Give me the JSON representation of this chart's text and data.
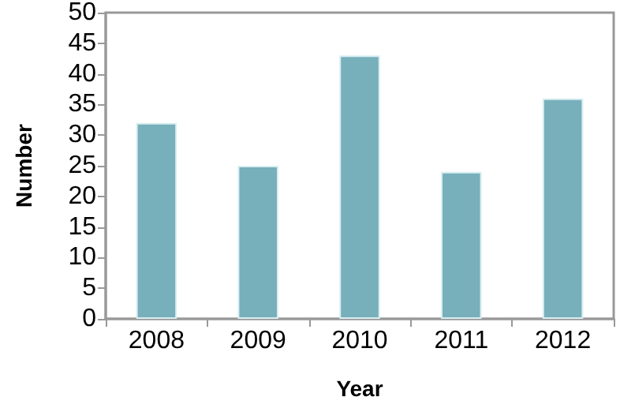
{
  "chart_data": {
    "type": "bar",
    "xlabel": "Year",
    "ylabel": "Number",
    "categories": [
      "2008",
      "2009",
      "2010",
      "2011",
      "2012"
    ],
    "values": [
      32,
      25,
      43,
      24,
      36
    ],
    "color": "#77afbb",
    "ylim": [
      0,
      50
    ],
    "yticks": [
      0,
      5,
      10,
      15,
      20,
      25,
      30,
      35,
      40,
      45,
      50
    ],
    "grid": false
  }
}
